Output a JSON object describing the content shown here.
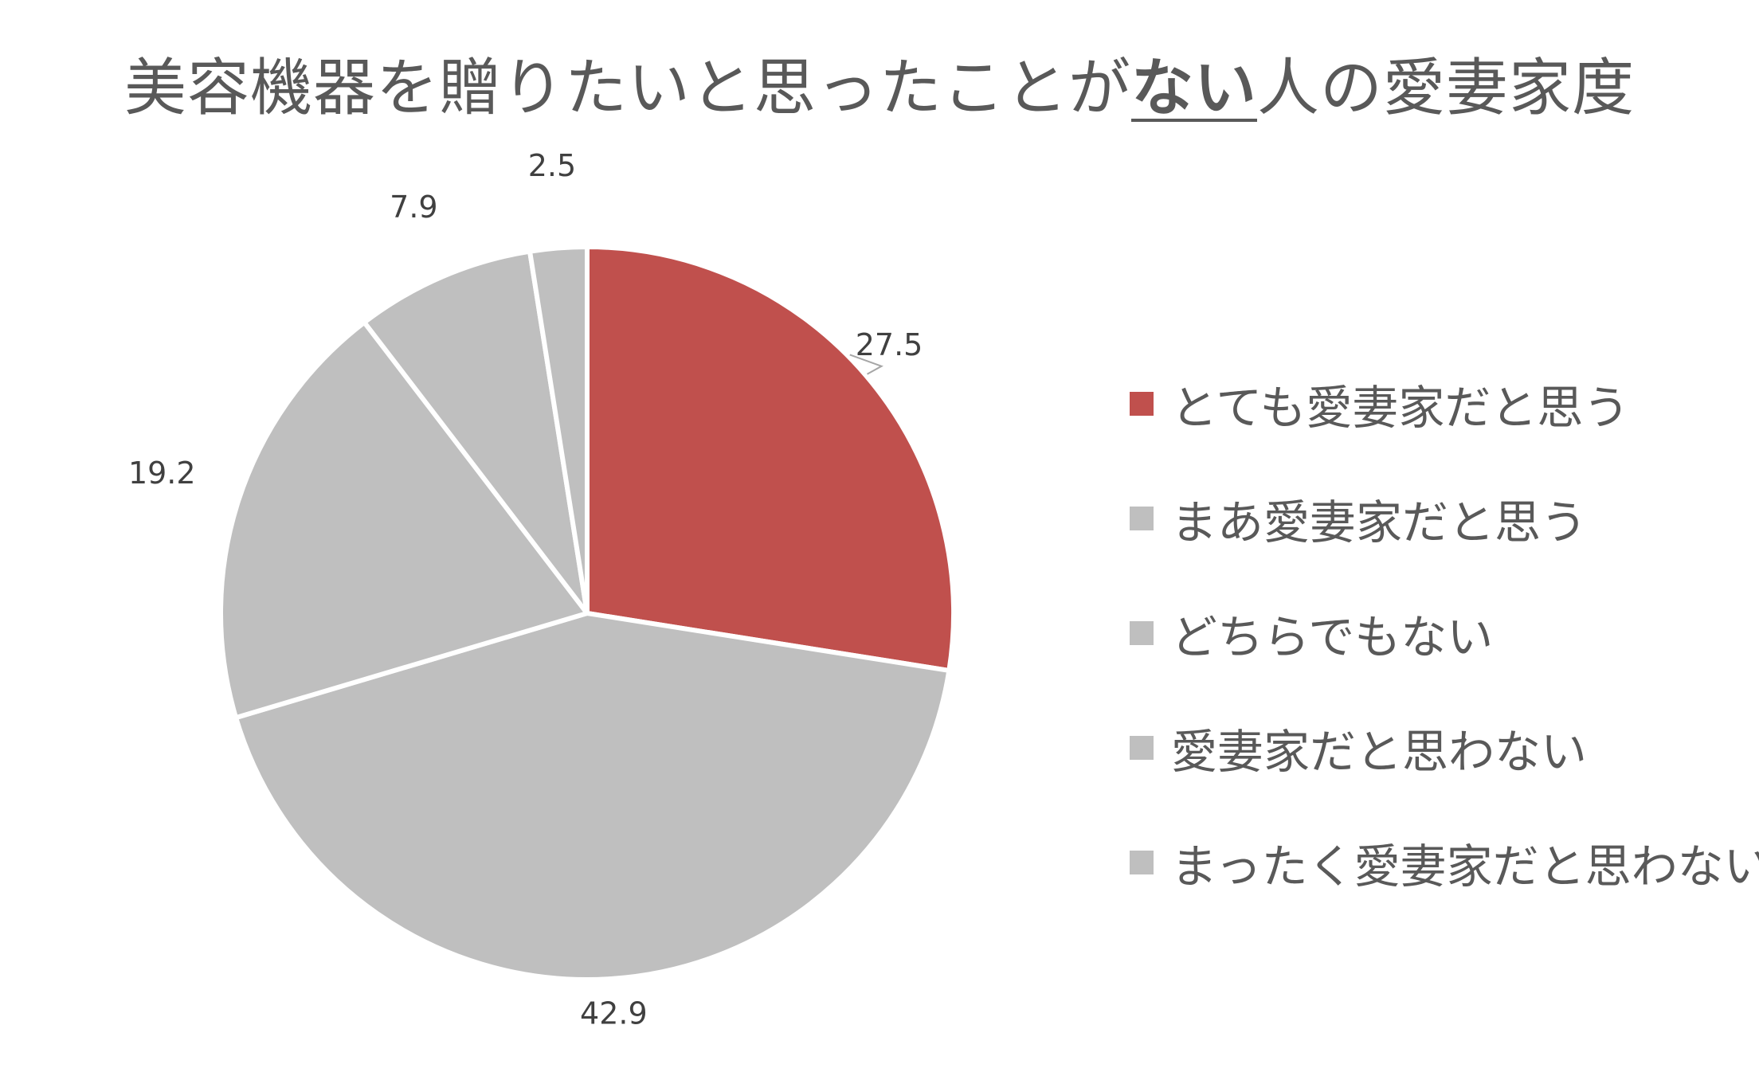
{
  "chart_data": {
    "type": "pie",
    "title_parts": [
      "美容機器を贈りたいと思ったことが",
      "ない",
      "人の愛妻家度"
    ],
    "categories": [
      "とても愛妻家だと思う",
      "まあ愛妻家だと思う",
      "どちらでもない",
      "愛妻家だと思わない",
      "まったく愛妻家だと思わない"
    ],
    "values": [
      27.5,
      42.9,
      19.2,
      7.9,
      2.5
    ],
    "value_labels": [
      "27.5",
      "42.9",
      "19.2",
      "7.9",
      "2.5"
    ],
    "colors": [
      "#C0504D",
      "#BFBFBF",
      "#BFBFBF",
      "#BFBFBF",
      "#BFBFBF"
    ],
    "start_angle_deg": 0,
    "direction": "clockwise",
    "legend_position": "right"
  }
}
